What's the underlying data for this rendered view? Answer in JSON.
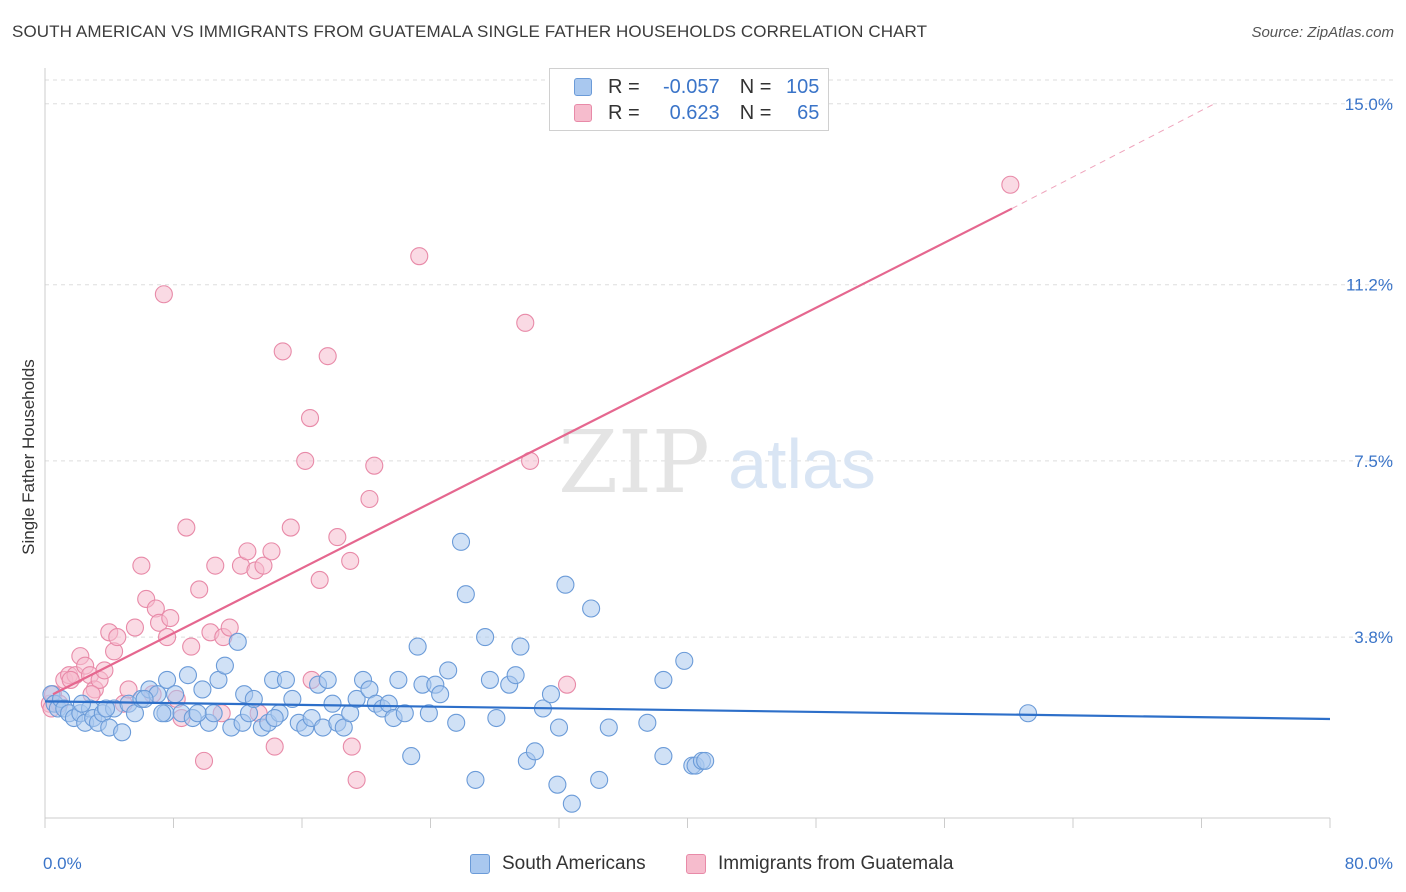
{
  "title": "SOUTH AMERICAN VS IMMIGRANTS FROM GUATEMALA SINGLE FATHER HOUSEHOLDS CORRELATION CHART",
  "source": "Source: ZipAtlas.com",
  "legend": {
    "r_label": "R =",
    "n_label": "N =",
    "rows": [
      {
        "r": "-0.057",
        "n": "105"
      },
      {
        "r": "0.623",
        "n": "65"
      }
    ]
  },
  "watermark": {
    "zip": "ZIP",
    "atlas": "atlas"
  },
  "colors": {
    "blue_fill": "#a9c8ef",
    "blue_stroke": "#6b9bd8",
    "blue_line": "#2d6fc9",
    "pink_fill": "#f6bccd",
    "pink_stroke": "#e88aa8",
    "pink_line": "#e5678f",
    "tick_label": "#3a74c8"
  },
  "chart_data": {
    "type": "scatter",
    "title": "SOUTH AMERICAN VS IMMIGRANTS FROM GUATEMALA SINGLE FATHER HOUSEHOLDS CORRELATION CHART",
    "xlabel": "",
    "ylabel": "Single Father Households",
    "xlim": [
      0,
      80
    ],
    "ylim": [
      0,
      15.5
    ],
    "x_tick_labels": [
      "0.0%",
      "80.0%"
    ],
    "y_ticks": [
      3.8,
      7.5,
      11.2,
      15.0
    ],
    "y_tick_labels": [
      "3.8%",
      "7.5%",
      "11.2%",
      "15.0%"
    ],
    "grid": "horizontal dashed",
    "legend_position": "top-center",
    "series": [
      {
        "name": "South Americans",
        "r": -0.057,
        "n": 105,
        "trend": {
          "x": [
            0,
            80
          ],
          "y": [
            2.45,
            2.08
          ]
        },
        "points": [
          [
            0.4,
            2.6
          ],
          [
            0.6,
            2.4
          ],
          [
            0.8,
            2.3
          ],
          [
            1.0,
            2.5
          ],
          [
            1.2,
            2.3
          ],
          [
            1.5,
            2.2
          ],
          [
            1.8,
            2.1
          ],
          [
            2.2,
            2.2
          ],
          [
            2.5,
            2.0
          ],
          [
            2.8,
            2.3
          ],
          [
            3.0,
            2.1
          ],
          [
            3.3,
            2.0
          ],
          [
            3.6,
            2.2
          ],
          [
            4.0,
            1.9
          ],
          [
            4.3,
            2.3
          ],
          [
            4.8,
            1.8
          ],
          [
            5.2,
            2.4
          ],
          [
            5.6,
            2.2
          ],
          [
            6.0,
            2.5
          ],
          [
            6.5,
            2.7
          ],
          [
            7.0,
            2.6
          ],
          [
            7.5,
            2.2
          ],
          [
            7.6,
            2.9
          ],
          [
            8.1,
            2.6
          ],
          [
            8.5,
            2.2
          ],
          [
            8.9,
            3.0
          ],
          [
            9.2,
            2.1
          ],
          [
            9.8,
            2.7
          ],
          [
            10.2,
            2.0
          ],
          [
            10.5,
            2.2
          ],
          [
            10.8,
            2.9
          ],
          [
            11.2,
            3.2
          ],
          [
            11.6,
            1.9
          ],
          [
            12.0,
            3.7
          ],
          [
            12.3,
            2.0
          ],
          [
            12.4,
            2.6
          ],
          [
            12.7,
            2.2
          ],
          [
            13.0,
            2.5
          ],
          [
            13.5,
            1.9
          ],
          [
            13.9,
            2.0
          ],
          [
            14.2,
            2.9
          ],
          [
            14.6,
            2.2
          ],
          [
            14.3,
            2.1
          ],
          [
            15.0,
            2.9
          ],
          [
            15.4,
            2.5
          ],
          [
            15.8,
            2.0
          ],
          [
            16.2,
            1.9
          ],
          [
            16.6,
            2.1
          ],
          [
            17.0,
            2.8
          ],
          [
            17.3,
            1.9
          ],
          [
            17.6,
            2.9
          ],
          [
            17.9,
            2.4
          ],
          [
            18.2,
            2.0
          ],
          [
            18.6,
            1.9
          ],
          [
            19.0,
            2.2
          ],
          [
            19.4,
            2.5
          ],
          [
            19.8,
            2.9
          ],
          [
            20.2,
            2.7
          ],
          [
            20.6,
            2.4
          ],
          [
            21.0,
            2.3
          ],
          [
            21.4,
            2.4
          ],
          [
            21.7,
            2.1
          ],
          [
            22.0,
            2.9
          ],
          [
            22.4,
            2.2
          ],
          [
            22.8,
            1.3
          ],
          [
            23.2,
            3.6
          ],
          [
            23.5,
            2.8
          ],
          [
            23.9,
            2.2
          ],
          [
            24.3,
            2.8
          ],
          [
            24.6,
            2.6
          ],
          [
            25.1,
            3.1
          ],
          [
            25.6,
            2.0
          ],
          [
            25.9,
            5.8
          ],
          [
            26.2,
            4.7
          ],
          [
            26.8,
            0.8
          ],
          [
            27.4,
            3.8
          ],
          [
            27.7,
            2.9
          ],
          [
            28.1,
            2.1
          ],
          [
            28.9,
            2.8
          ],
          [
            29.3,
            3.0
          ],
          [
            29.6,
            3.6
          ],
          [
            30.0,
            1.2
          ],
          [
            30.5,
            1.4
          ],
          [
            31.0,
            2.3
          ],
          [
            31.5,
            2.6
          ],
          [
            31.9,
            0.7
          ],
          [
            32.0,
            1.9
          ],
          [
            32.4,
            4.9
          ],
          [
            32.8,
            0.3
          ],
          [
            34.0,
            4.4
          ],
          [
            34.5,
            0.8
          ],
          [
            35.1,
            1.9
          ],
          [
            37.5,
            2.0
          ],
          [
            38.5,
            2.9
          ],
          [
            38.5,
            1.3
          ],
          [
            39.8,
            3.3
          ],
          [
            40.3,
            1.1
          ],
          [
            40.5,
            1.1
          ],
          [
            40.9,
            1.2
          ],
          [
            41.1,
            1.2
          ],
          [
            61.2,
            2.2
          ],
          [
            7.3,
            2.2
          ],
          [
            9.5,
            2.2
          ],
          [
            6.2,
            2.5
          ],
          [
            3.8,
            2.3
          ],
          [
            2.3,
            2.4
          ]
        ]
      },
      {
        "name": "Immigrants from Guatemala",
        "r": 0.623,
        "n": 65,
        "trend": {
          "x": [
            0.5,
            60.2
          ],
          "y": [
            2.6,
            12.8
          ]
        },
        "trend_extension": {
          "x": [
            60.2,
            72.8
          ],
          "y": [
            12.8,
            15.0
          ]
        },
        "points": [
          [
            0.3,
            2.4
          ],
          [
            0.5,
            2.6
          ],
          [
            0.9,
            2.4
          ],
          [
            1.2,
            2.9
          ],
          [
            1.5,
            3.0
          ],
          [
            1.9,
            3.0
          ],
          [
            2.2,
            3.4
          ],
          [
            2.5,
            3.2
          ],
          [
            2.8,
            3.0
          ],
          [
            3.1,
            2.7
          ],
          [
            3.4,
            2.9
          ],
          [
            3.7,
            3.1
          ],
          [
            4.0,
            3.9
          ],
          [
            4.3,
            3.5
          ],
          [
            4.9,
            2.4
          ],
          [
            5.2,
            2.7
          ],
          [
            5.6,
            4.0
          ],
          [
            6.0,
            5.3
          ],
          [
            6.3,
            4.6
          ],
          [
            6.9,
            4.4
          ],
          [
            7.1,
            4.1
          ],
          [
            7.4,
            11.0
          ],
          [
            7.6,
            3.8
          ],
          [
            7.8,
            4.2
          ],
          [
            8.2,
            2.5
          ],
          [
            8.8,
            6.1
          ],
          [
            9.1,
            3.6
          ],
          [
            9.6,
            4.8
          ],
          [
            9.9,
            1.2
          ],
          [
            10.3,
            3.9
          ],
          [
            10.6,
            5.3
          ],
          [
            11.1,
            3.8
          ],
          [
            11.5,
            4.0
          ],
          [
            12.2,
            5.3
          ],
          [
            12.6,
            5.6
          ],
          [
            13.1,
            5.2
          ],
          [
            13.6,
            5.3
          ],
          [
            14.1,
            5.6
          ],
          [
            14.3,
            1.5
          ],
          [
            14.8,
            9.8
          ],
          [
            15.3,
            6.1
          ],
          [
            16.2,
            7.5
          ],
          [
            16.5,
            8.4
          ],
          [
            16.6,
            2.9
          ],
          [
            17.1,
            5.0
          ],
          [
            17.6,
            9.7
          ],
          [
            18.2,
            5.9
          ],
          [
            19.0,
            5.4
          ],
          [
            19.1,
            1.5
          ],
          [
            19.4,
            0.8
          ],
          [
            20.2,
            6.7
          ],
          [
            20.5,
            7.4
          ],
          [
            23.3,
            11.8
          ],
          [
            29.9,
            10.4
          ],
          [
            30.2,
            7.5
          ],
          [
            32.5,
            2.8
          ],
          [
            60.1,
            13.3
          ],
          [
            1.6,
            2.9
          ],
          [
            2.9,
            2.6
          ],
          [
            4.5,
            3.8
          ],
          [
            6.7,
            2.6
          ],
          [
            8.5,
            2.1
          ],
          [
            11.0,
            2.2
          ],
          [
            13.3,
            2.2
          ],
          [
            0.4,
            2.3
          ]
        ]
      }
    ]
  }
}
